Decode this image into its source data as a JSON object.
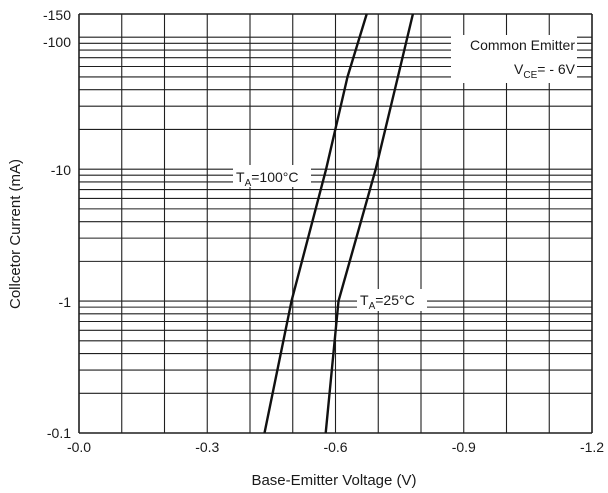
{
  "chart_data": {
    "type": "line",
    "xlabel": "Base-Emitter Voltage (V)",
    "ylabel": "Collcetor Current (mA)",
    "x_scale": "linear",
    "y_scale": "log",
    "xlim": [
      0.0,
      -1.2
    ],
    "ylim": [
      0.1,
      150
    ],
    "grid": true,
    "x_ticks": [
      {
        "value": 0.0,
        "label": "-0.0"
      },
      {
        "value": -0.3,
        "label": "-0.3"
      },
      {
        "value": -0.6,
        "label": "-0.6"
      },
      {
        "value": -0.9,
        "label": "-0.9"
      },
      {
        "value": -1.2,
        "label": "-1.2"
      }
    ],
    "y_ticks": [
      {
        "value": 150,
        "label": "-150"
      },
      {
        "value": 100,
        "label": "-100"
      },
      {
        "value": 10,
        "label": "-10"
      },
      {
        "value": 1,
        "label": "-1"
      },
      {
        "value": 0.1,
        "label": "-0.1"
      }
    ],
    "series": [
      {
        "name": "TA=100°C",
        "x": [
          -0.434,
          -0.497,
          -0.578,
          -0.628,
          -0.673
        ],
        "y": [
          0.1,
          1,
          10,
          50,
          150
        ]
      },
      {
        "name": "TA=25°C",
        "x": [
          -0.577,
          -0.607,
          -0.694,
          -0.746,
          -0.781
        ],
        "y": [
          0.1,
          1,
          10,
          50,
          150
        ]
      }
    ],
    "annotations": [
      {
        "id": "ta100",
        "main": "T",
        "sub": "A",
        "rest": "=100°C"
      },
      {
        "id": "ta25",
        "main": "T",
        "sub": "A",
        "rest": "=25°C"
      },
      {
        "id": "ce",
        "line1": "Common Emitter",
        "main": "V",
        "sub": "CE",
        "rest": "= - 6V"
      }
    ],
    "colors": {
      "grid": "#1f1f1f",
      "line": "#111111",
      "background": "#ffffff"
    }
  }
}
